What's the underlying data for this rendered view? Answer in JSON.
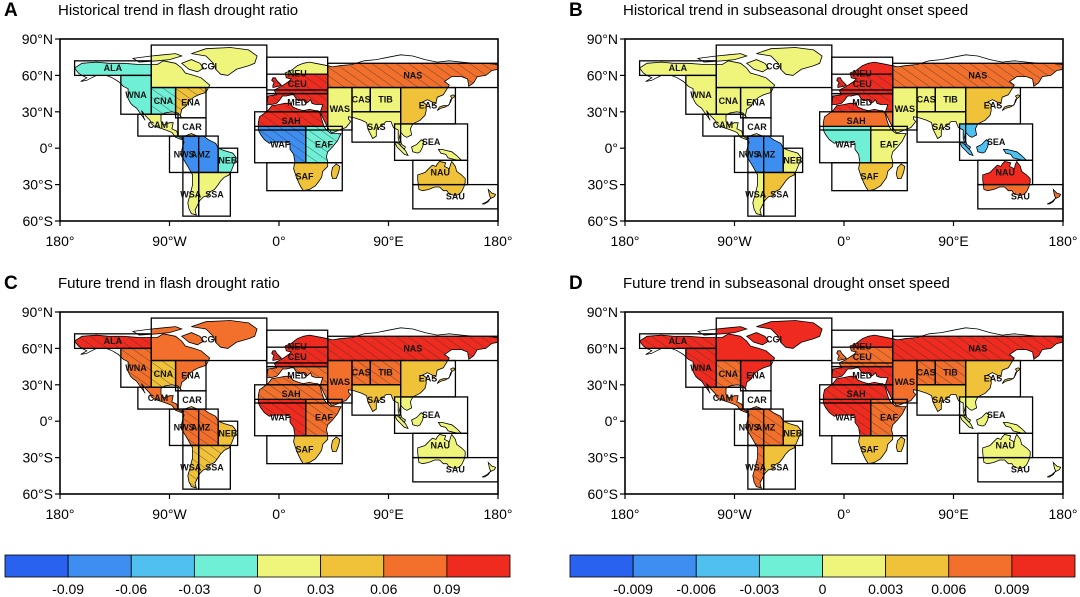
{
  "colors": [
    "#2a62f0",
    "#3d8ef0",
    "#4fc0ef",
    "#6ff0d6",
    "#eef57a",
    "#f0c23a",
    "#f2702b",
    "#ef2a1f"
  ],
  "lat_labels": [
    "90°N",
    "60°N",
    "30°N",
    "0°",
    "30°S",
    "60°S"
  ],
  "lon_labels": [
    "180°",
    "90°W",
    "0°",
    "90°E",
    "180°"
  ],
  "panels": [
    {
      "letter": "A",
      "title": "Historical trend in flash drought ratio",
      "regions": {
        "ALA": 3,
        "CGI": 4,
        "WNA": 3,
        "CNA": 3,
        "ENA": 5,
        "CAM": 4,
        "CAR": 5,
        "NWS": 3,
        "AMZ": 1,
        "NEB": 3,
        "WSA": 4,
        "SSA": 4,
        "NEU": 4,
        "CEU": 7,
        "MED": 7,
        "SAH": 7,
        "WAF": 1,
        "EAF": 3,
        "SAF": 5,
        "NAS": 6,
        "WAS": 4,
        "CAS": 4,
        "TIB": 4,
        "EAS": 5,
        "SAS": 4,
        "SEA": 4,
        "NAU": 5,
        "SAU": 5
      }
    },
    {
      "letter": "B",
      "title": "Historical trend in subseasonal drought onset speed",
      "regions": {
        "ALA": 4,
        "CGI": 4,
        "WNA": 4,
        "CNA": 4,
        "ENA": 4,
        "CAM": 4,
        "CAR": 4,
        "NWS": 4,
        "AMZ": 1,
        "NEB": 4,
        "WSA": 4,
        "SSA": 5,
        "NEU": 7,
        "CEU": 7,
        "MED": 7,
        "SAH": 6,
        "WAF": 3,
        "EAF": 4,
        "SAF": 5,
        "NAS": 6,
        "WAS": 4,
        "CAS": 4,
        "TIB": 4,
        "EAS": 5,
        "SAS": 4,
        "SEA": 2,
        "NAU": 7,
        "SAU": 6
      }
    },
    {
      "letter": "C",
      "title": "Future trend in flash drought ratio",
      "regions": {
        "ALA": 7,
        "CGI": 6,
        "WNA": 6,
        "CNA": 5,
        "ENA": 6,
        "CAM": 6,
        "CAR": 5,
        "NWS": 6,
        "AMZ": 6,
        "NEB": 5,
        "WSA": 5,
        "SSA": 5,
        "NEU": 7,
        "CEU": 7,
        "MED": 6,
        "SAH": 6,
        "WAF": 7,
        "EAF": 6,
        "SAF": 5,
        "NAS": 7,
        "WAS": 6,
        "CAS": 6,
        "TIB": 6,
        "EAS": 5,
        "SAS": 5,
        "SEA": 4,
        "NAU": 4,
        "SAU": 4
      }
    },
    {
      "letter": "D",
      "title": "Future trend in subseasonal drought onset speed",
      "regions": {
        "ALA": 7,
        "CGI": 7,
        "WNA": 7,
        "CNA": 6,
        "ENA": 7,
        "CAM": 6,
        "CAR": 6,
        "NWS": 6,
        "AMZ": 6,
        "NEB": 5,
        "WSA": 6,
        "SSA": 5,
        "NEU": 7,
        "CEU": 6,
        "MED": 7,
        "SAH": 7,
        "WAF": 7,
        "EAF": 6,
        "SAF": 5,
        "NAS": 7,
        "WAS": 6,
        "CAS": 6,
        "TIB": 6,
        "EAS": 5,
        "SAS": 5,
        "SEA": 4,
        "NAU": 4,
        "SAU": 4
      }
    }
  ],
  "colorbars": [
    {
      "ticks": [
        "-0.09",
        "-0.06",
        "-0.03",
        "0",
        "0.03",
        "0.06",
        "0.09"
      ]
    },
    {
      "ticks": [
        "-0.009",
        "-0.006",
        "-0.003",
        "0",
        "0.003",
        "0.006",
        "0.009"
      ]
    }
  ]
}
